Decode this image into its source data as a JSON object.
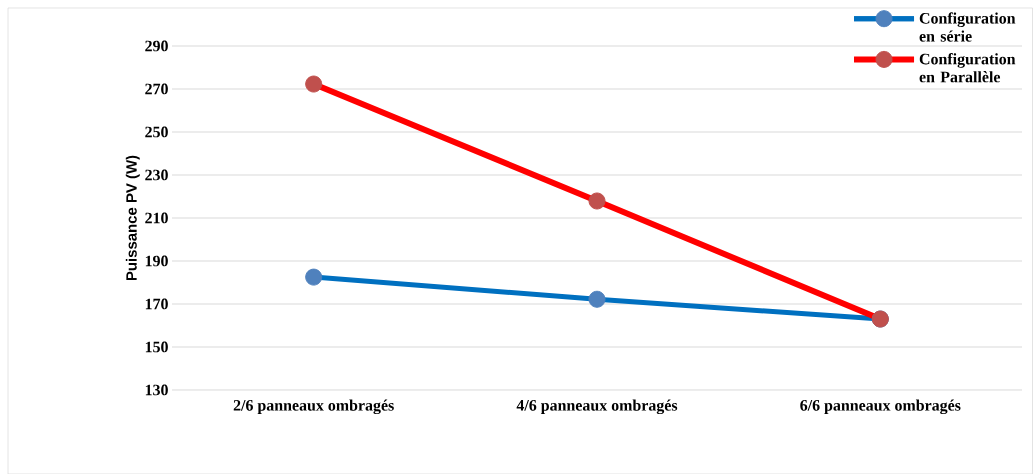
{
  "chart_data": {
    "type": "line",
    "ylabel": "Puissance PV (W)",
    "categories": [
      "2/6 panneaux ombragés",
      "4/6 panneaux ombragés",
      "6/6 panneaux ombragés"
    ],
    "series": [
      {
        "name": "Configuration en série",
        "color": "#0070c0",
        "values": [
          182.5,
          172.2,
          163
        ]
      },
      {
        "name": "Configuration en Parallèle",
        "color": "#ff0000",
        "values": [
          272.3,
          217.9,
          163
        ]
      }
    ],
    "ylim": [
      130,
      290
    ],
    "yticks": [
      130,
      150,
      170,
      190,
      210,
      230,
      250,
      270,
      290
    ],
    "grid": "y",
    "legend": "top right",
    "marker": "circle",
    "line_style": "solid"
  }
}
